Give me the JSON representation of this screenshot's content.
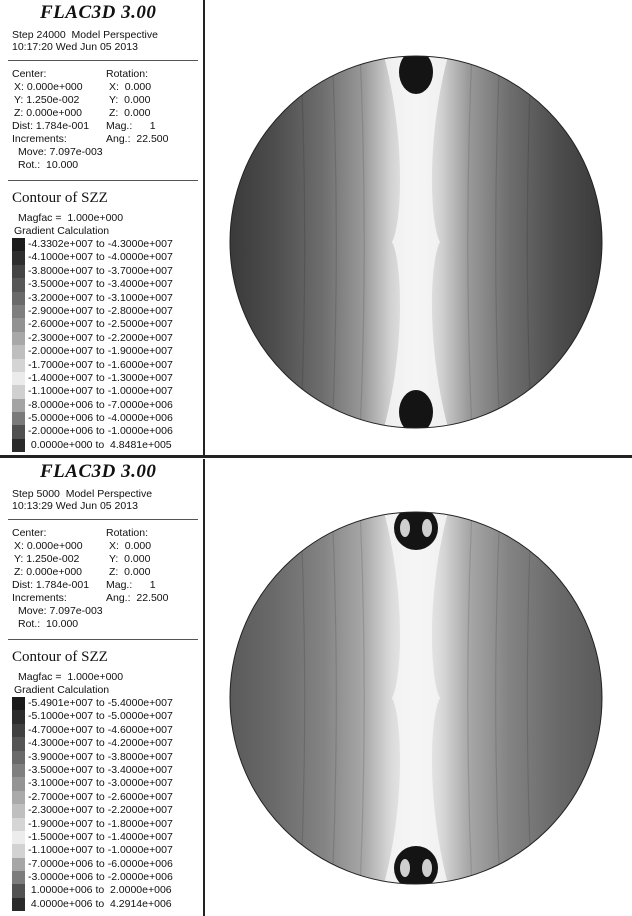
{
  "panels": [
    {
      "app_title": "FLAC3D 3.00",
      "step_line": "Step 24000  Model Perspective",
      "time_line": "10:17:20 Wed Jun 05 2013",
      "center_label": "Center:",
      "rotation_label": "Rotation:",
      "center": {
        "x": "X: 0.000e+000",
        "y": "Y: 1.250e-002",
        "z": "Z: 0.000e+000"
      },
      "rotation": {
        "x": "X:  0.000",
        "y": "Y:  0.000",
        "z": "Z:  0.000"
      },
      "dist": "Dist: 1.784e-001",
      "mag": "Mag.:      1",
      "increments": "Increments:",
      "ang": "Ang.:  22.500",
      "move": "Move: 7.097e-003",
      "rot": "Rot.:  10.000",
      "contour_title": "Contour of SZZ",
      "magfac": "Magfac =  1.000e+000",
      "gradient": "Gradient Calculation",
      "legend": [
        {
          "label": "-4.3302e+007 to -4.3000e+007",
          "color": "#1c1c1c"
        },
        {
          "label": "-4.1000e+007 to -4.0000e+007",
          "color": "#2e2e2e"
        },
        {
          "label": "-3.8000e+007 to -3.7000e+007",
          "color": "#444444"
        },
        {
          "label": "-3.5000e+007 to -3.4000e+007",
          "color": "#575757"
        },
        {
          "label": "-3.2000e+007 to -3.1000e+007",
          "color": "#6a6a6a"
        },
        {
          "label": "-2.9000e+007 to -2.8000e+007",
          "color": "#7e7e7e"
        },
        {
          "label": "-2.6000e+007 to -2.5000e+007",
          "color": "#929292"
        },
        {
          "label": "-2.3000e+007 to -2.2000e+007",
          "color": "#a8a8a8"
        },
        {
          "label": "-2.0000e+007 to -1.9000e+007",
          "color": "#bebebe"
        },
        {
          "label": "-1.7000e+007 to -1.6000e+007",
          "color": "#d4d4d4"
        },
        {
          "label": "-1.4000e+007 to -1.3000e+007",
          "color": "#ebebeb"
        },
        {
          "label": "-1.1000e+007 to -1.0000e+007",
          "color": "#d0d0d0"
        },
        {
          "label": "-8.0000e+006 to -7.0000e+006",
          "color": "#a4a4a4"
        },
        {
          "label": "-5.0000e+006 to -4.0000e+006",
          "color": "#7a7a7a"
        },
        {
          "label": "-2.0000e+006 to -1.0000e+006",
          "color": "#505050"
        },
        {
          "label": " 0.0000e+000 to  4.8481e+005",
          "color": "#2a2a2a"
        }
      ]
    },
    {
      "app_title": "FLAC3D 3.00",
      "step_line": "Step 5000  Model Perspective",
      "time_line": "10:13:29 Wed Jun 05 2013",
      "center_label": "Center:",
      "rotation_label": "Rotation:",
      "center": {
        "x": "X: 0.000e+000",
        "y": "Y: 1.250e-002",
        "z": "Z: 0.000e+000"
      },
      "rotation": {
        "x": "X:  0.000",
        "y": "Y:  0.000",
        "z": "Z:  0.000"
      },
      "dist": "Dist: 1.784e-001",
      "mag": "Mag.:      1",
      "increments": "Increments:",
      "ang": "Ang.:  22.500",
      "move": "Move: 7.097e-003",
      "rot": "Rot.:  10.000",
      "contour_title": "Contour of SZZ",
      "magfac": "Magfac =  1.000e+000",
      "gradient": "Gradient Calculation",
      "legend": [
        {
          "label": "-5.4901e+007 to -5.4000e+007",
          "color": "#1a1a1a"
        },
        {
          "label": "-5.1000e+007 to -5.0000e+007",
          "color": "#2c2c2c"
        },
        {
          "label": "-4.7000e+007 to -4.6000e+007",
          "color": "#404040"
        },
        {
          "label": "-4.3000e+007 to -4.2000e+007",
          "color": "#555555"
        },
        {
          "label": "-3.9000e+007 to -3.8000e+007",
          "color": "#6a6a6a"
        },
        {
          "label": "-3.5000e+007 to -3.4000e+007",
          "color": "#7f7f7f"
        },
        {
          "label": "-3.1000e+007 to -3.0000e+007",
          "color": "#949494"
        },
        {
          "label": "-2.7000e+007 to -2.6000e+007",
          "color": "#aaaaaa"
        },
        {
          "label": "-2.3000e+007 to -2.2000e+007",
          "color": "#bfbfbf"
        },
        {
          "label": "-1.9000e+007 to -1.8000e+007",
          "color": "#d5d5d5"
        },
        {
          "label": "-1.5000e+007 to -1.4000e+007",
          "color": "#ececec"
        },
        {
          "label": "-1.1000e+007 to -1.0000e+007",
          "color": "#d2d2d2"
        },
        {
          "label": "-7.0000e+006 to -6.0000e+006",
          "color": "#a6a6a6"
        },
        {
          "label": "-3.0000e+006 to -2.0000e+006",
          "color": "#7c7c7c"
        },
        {
          "label": " 1.0000e+006 to  2.0000e+006",
          "color": "#525252"
        },
        {
          "label": " 4.0000e+006 to  4.2914e+006",
          "color": "#2a2a2a"
        }
      ]
    }
  ]
}
